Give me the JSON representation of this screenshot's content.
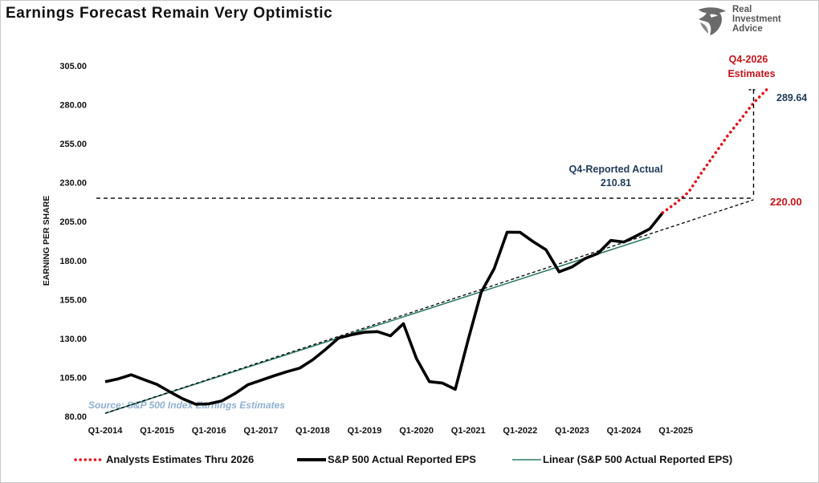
{
  "header": {
    "title": "Earnings Forecast Remain Very Optimistic",
    "logo_lines": [
      "Real",
      "Investment",
      "Advice"
    ],
    "logo_icon": "eagle-head-icon"
  },
  "colors": {
    "actual": "#000000",
    "estimate": "#e0141b",
    "linear": "#2e7a6a",
    "annotation_navy": "#1f3a5a",
    "annotation_red": "#c0141b",
    "source": "#8fb0d0"
  },
  "chart_data": {
    "type": "line",
    "title": "Earnings Forecast Remain Very Optimistic",
    "ylabel": "EARNING PER SHARE",
    "xlabel": "",
    "ylim": [
      80,
      305
    ],
    "yticks": [
      "305.00",
      "280.00",
      "255.00",
      "230.00",
      "205.00",
      "180.00",
      "155.00",
      "130.00",
      "105.00",
      "80.00"
    ],
    "ytick_values": [
      305,
      280,
      255,
      230,
      205,
      180,
      155,
      130,
      105,
      80
    ],
    "xticks": [
      "Q1-2014",
      "Q1-2015",
      "Q1-2016",
      "Q1-2017",
      "Q1-2018",
      "Q1-2019",
      "Q1-2020",
      "Q1-2021",
      "Q1-2022",
      "Q1-2023",
      "Q1-2024",
      "Q1-2025"
    ],
    "quarters_span": [
      "Q1-2014",
      "Q4-2026"
    ],
    "grid": false,
    "legend_position": "bottom",
    "series": [
      {
        "name": "S&P 500 Actual Reported EPS",
        "style": "solid",
        "values": [
          102.3,
          104.1,
          106.7,
          103.6,
          100.5,
          95.7,
          91.2,
          87.8,
          88.1,
          90.0,
          94.6,
          100.3,
          103.1,
          106.0,
          108.7,
          111.0,
          116.3,
          123.0,
          130.3,
          132.4,
          134.0,
          134.4,
          131.7,
          139.5,
          117.2,
          102.3,
          101.4,
          97.4,
          129.5,
          159.7,
          174.9,
          198.2,
          198.1,
          192.2,
          186.9,
          172.8,
          175.9,
          181.3,
          184.6,
          192.9,
          191.9,
          196.0,
          200.4,
          210.8
        ]
      },
      {
        "name": "Analysts Estimates Thru 2026",
        "style": "dotted",
        "values": [
          210.8,
          216.8,
          224.0,
          236.5,
          248.3,
          260.1,
          270.5,
          281.2,
          289.6
        ]
      },
      {
        "name": "Linear (S&P 500 Actual Reported EPS)",
        "style": "trendline",
        "start": {
          "q": 1,
          "value": 82.0
        },
        "end": {
          "q": 43,
          "value": 195.0
        }
      }
    ],
    "reference_lines": [
      {
        "type": "horizontal",
        "value": 220.0,
        "label": "220.00"
      },
      {
        "type": "trend-extension",
        "from": {
          "q": 28,
          "value": 151.0
        },
        "to": {
          "q": 51,
          "value": 219.0
        }
      },
      {
        "type": "vertical",
        "q": 51,
        "from": 220.0,
        "to": 289.64,
        "label": "289.64"
      }
    ],
    "annotations": {
      "reported_label": "Q4-Reported Actual",
      "reported_value": "210.81",
      "estimate_label_1": "Q4-2026",
      "estimate_label_2": "Estimates",
      "end_value": "289.64",
      "level_value": "220.00",
      "source": "Source: S&P 500 Index Earnings Estimates"
    }
  }
}
